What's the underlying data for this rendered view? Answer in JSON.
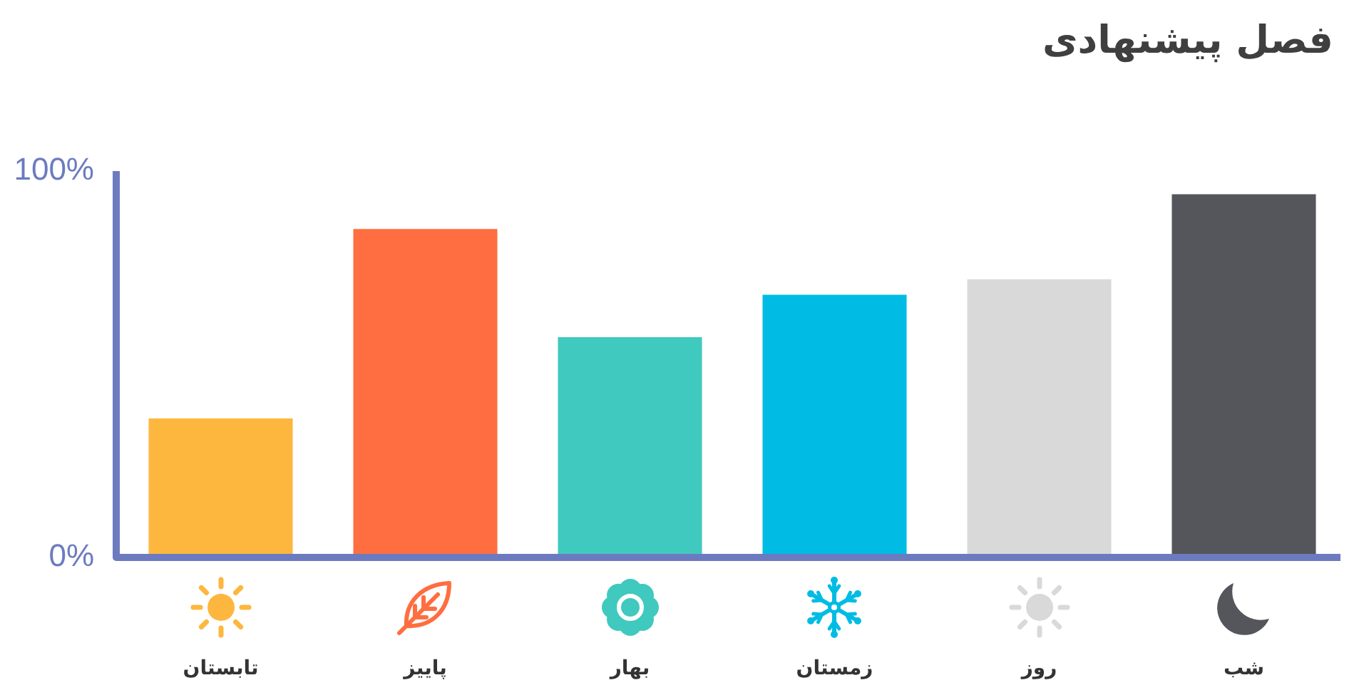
{
  "chart_data": {
    "type": "bar",
    "title": "فصل پیشنهادی",
    "categories": [
      "تابستان",
      "پاییز",
      "بهار",
      "زمستان",
      "روز",
      "شب"
    ],
    "values": [
      36,
      85,
      57,
      68,
      72,
      94
    ],
    "colors": [
      "#fdb73e",
      "#ff6e40",
      "#40c9be",
      "#00bce4",
      "#d9d9d9",
      "#54565b"
    ],
    "ylim": [
      0,
      100
    ],
    "yticks": [
      {
        "value": 0,
        "label": "0%"
      },
      {
        "value": 100,
        "label": "100%"
      }
    ]
  }
}
